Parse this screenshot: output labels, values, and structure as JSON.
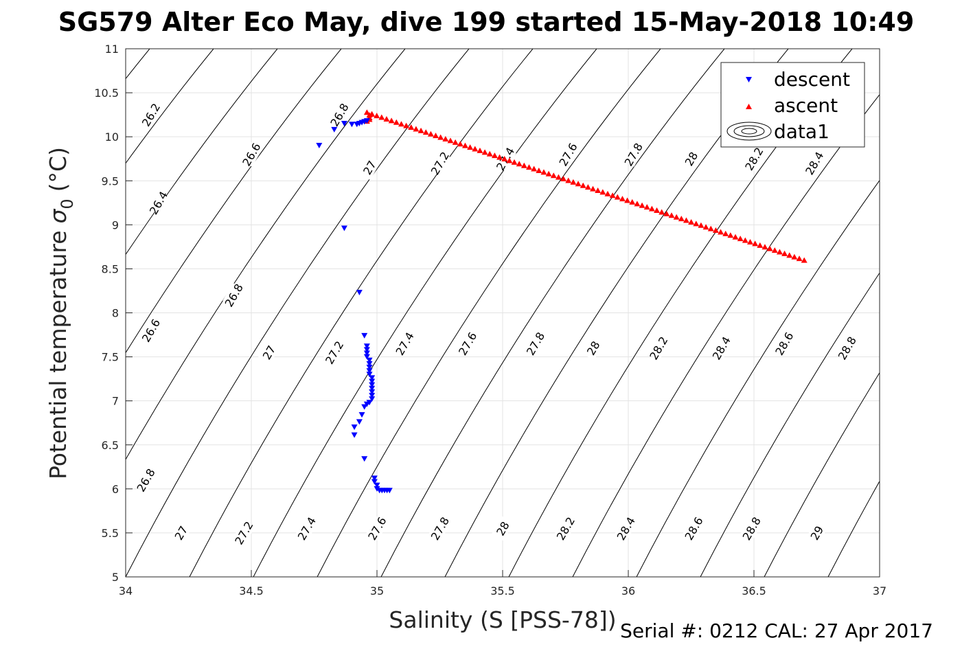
{
  "title": "SG579 Alter Eco May, dive 199 started 15-May-2018 10:49",
  "footer": "Serial #: 0212  CAL: 27 Apr 2017",
  "chart_data": {
    "type": "scatter",
    "xlabel": "Salinity (S [PSS-78])",
    "ylabel_main": "Potential temperature",
    "ylabel_sym": "σ",
    "ylabel_sub": "0",
    "ylabel_tail": "(°C)",
    "xlim": [
      34,
      37
    ],
    "ylim": [
      5,
      11
    ],
    "xticks": [
      "34",
      "34.5",
      "35",
      "35.5",
      "36",
      "36.5",
      "37"
    ],
    "yticks": [
      "5",
      "5.5",
      "6",
      "6.5",
      "7",
      "7.5",
      "8",
      "8.5",
      "9",
      "9.5",
      "10",
      "10.5",
      "11"
    ],
    "grid": true,
    "legend_position": "top-right",
    "legend": [
      "descent",
      "ascent",
      "data1"
    ],
    "series": [
      {
        "name": "descent",
        "marker": "triangle-down",
        "color": "#0000ff",
        "points": [
          [
            34.77,
            9.9
          ],
          [
            34.83,
            10.08
          ],
          [
            34.87,
            10.15
          ],
          [
            34.9,
            10.14
          ],
          [
            34.92,
            10.14
          ],
          [
            34.93,
            10.15
          ],
          [
            34.94,
            10.16
          ],
          [
            34.95,
            10.17
          ],
          [
            34.96,
            10.18
          ],
          [
            34.87,
            8.96
          ],
          [
            34.93,
            8.23
          ],
          [
            34.95,
            7.74
          ],
          [
            34.96,
            7.62
          ],
          [
            34.96,
            7.58
          ],
          [
            34.96,
            7.54
          ],
          [
            34.96,
            7.5
          ],
          [
            34.97,
            7.46
          ],
          [
            34.97,
            7.42
          ],
          [
            34.97,
            7.38
          ],
          [
            34.97,
            7.34
          ],
          [
            34.97,
            7.3
          ],
          [
            34.98,
            7.26
          ],
          [
            34.98,
            7.22
          ],
          [
            34.98,
            7.18
          ],
          [
            34.98,
            7.14
          ],
          [
            34.98,
            7.1
          ],
          [
            34.98,
            7.06
          ],
          [
            34.98,
            7.02
          ],
          [
            34.97,
            6.98
          ],
          [
            34.96,
            6.96
          ],
          [
            34.95,
            6.93
          ],
          [
            34.94,
            6.84
          ],
          [
            34.93,
            6.76
          ],
          [
            34.91,
            6.7
          ],
          [
            34.91,
            6.61
          ],
          [
            34.95,
            6.34
          ],
          [
            34.99,
            6.12
          ],
          [
            34.99,
            6.08
          ],
          [
            35.0,
            6.04
          ],
          [
            35.0,
            6.0
          ],
          [
            35.01,
            5.98
          ],
          [
            35.02,
            5.98
          ],
          [
            35.03,
            5.98
          ],
          [
            35.04,
            5.98
          ],
          [
            35.05,
            5.98
          ]
        ]
      },
      {
        "name": "ascent",
        "marker": "triangle-up",
        "color": "#ff0000",
        "line_from": [
          34.96,
          10.28
        ],
        "line_to": [
          36.7,
          8.6
        ],
        "line_count": 90,
        "points": [
          [
            34.97,
            10.22
          ],
          [
            34.97,
            10.2
          ],
          [
            34.96,
            10.18
          ],
          [
            34.97,
            10.25
          ],
          [
            34.98,
            10.26
          ]
        ]
      }
    ],
    "contours": [
      {
        "label": "26.2",
        "label_at": [
          34.1,
          10.25
        ]
      },
      {
        "label": "26.4",
        "label_at": [
          34.13,
          9.25
        ]
      },
      {
        "label": "26.6",
        "label_at": [
          34.5,
          9.8
        ]
      },
      {
        "label": "26.6",
        "label_at": [
          34.1,
          7.8
        ]
      },
      {
        "label": "26.8",
        "label_at": [
          34.85,
          10.25
        ]
      },
      {
        "label": "26.8",
        "label_at": [
          34.43,
          8.2
        ]
      },
      {
        "label": "26.8",
        "label_at": [
          34.08,
          6.1
        ]
      },
      {
        "label": "27",
        "label_at": [
          34.97,
          9.65
        ]
      },
      {
        "label": "27",
        "label_at": [
          34.57,
          7.55
        ]
      },
      {
        "label": "27",
        "label_at": [
          34.22,
          5.5
        ]
      },
      {
        "label": "27.2",
        "label_at": [
          35.25,
          9.7
        ]
      },
      {
        "label": "27.2",
        "label_at": [
          34.83,
          7.55
        ]
      },
      {
        "label": "27.2",
        "label_at": [
          34.47,
          5.5
        ]
      },
      {
        "label": "27.4",
        "label_at": [
          35.51,
          9.75
        ]
      },
      {
        "label": "27.4",
        "label_at": [
          35.11,
          7.65
        ]
      },
      {
        "label": "27.4",
        "label_at": [
          34.72,
          5.55
        ]
      },
      {
        "label": "27.6",
        "label_at": [
          35.76,
          9.8
        ]
      },
      {
        "label": "27.6",
        "label_at": [
          35.36,
          7.65
        ]
      },
      {
        "label": "27.6",
        "label_at": [
          35.0,
          5.55
        ]
      },
      {
        "label": "27.8",
        "label_at": [
          36.02,
          9.8
        ]
      },
      {
        "label": "27.8",
        "label_at": [
          35.63,
          7.65
        ]
      },
      {
        "label": "27.8",
        "label_at": [
          35.25,
          5.55
        ]
      },
      {
        "label": "28",
        "label_at": [
          36.25,
          9.75
        ]
      },
      {
        "label": "28",
        "label_at": [
          35.86,
          7.6
        ]
      },
      {
        "label": "28",
        "label_at": [
          35.5,
          5.55
        ]
      },
      {
        "label": "28.2",
        "label_at": [
          36.5,
          9.75
        ]
      },
      {
        "label": "28.2",
        "label_at": [
          36.12,
          7.6
        ]
      },
      {
        "label": "28.2",
        "label_at": [
          35.75,
          5.55
        ]
      },
      {
        "label": "28.4",
        "label_at": [
          36.74,
          9.7
        ]
      },
      {
        "label": "28.4",
        "label_at": [
          36.37,
          7.6
        ]
      },
      {
        "label": "28.4",
        "label_at": [
          35.99,
          5.55
        ]
      },
      {
        "label": "28.6",
        "label_at": [
          36.62,
          7.65
        ]
      },
      {
        "label": "28.6",
        "label_at": [
          36.26,
          5.55
        ]
      },
      {
        "label": "28.8",
        "label_at": [
          36.87,
          7.6
        ]
      },
      {
        "label": "28.8",
        "label_at": [
          36.49,
          5.55
        ]
      },
      {
        "label": "29",
        "label_at": [
          36.75,
          5.5
        ]
      }
    ]
  }
}
